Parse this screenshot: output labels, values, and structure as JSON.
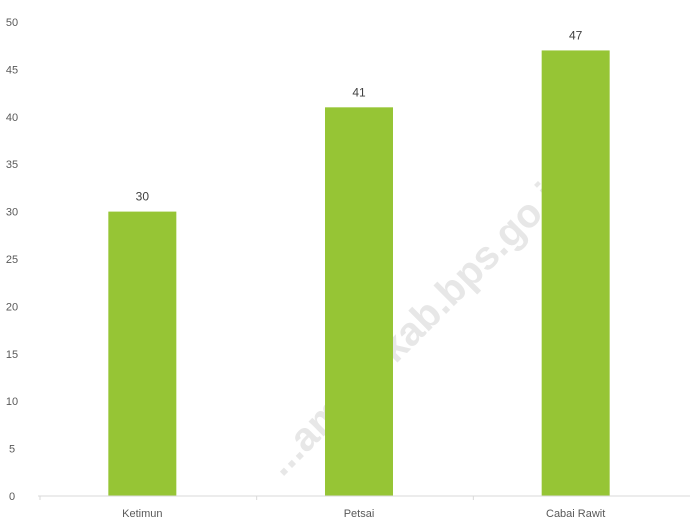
{
  "chart_data": {
    "type": "bar",
    "categories": [
      "Ketimun",
      "Petsai",
      "Cabai Rawit"
    ],
    "values": [
      30,
      41,
      47
    ],
    "ylim": [
      0,
      50
    ],
    "yticks": [
      0,
      5,
      10,
      15,
      20,
      25,
      30,
      35,
      40,
      45,
      50
    ],
    "grid": false,
    "legend": "none",
    "title": "",
    "xlabel": "",
    "ylabel": ""
  },
  "colors": {
    "bar": "#96c535",
    "axis": "#d9d9d9",
    "text": "#595959"
  },
  "watermark": "...ambaskab.bps.go.id"
}
